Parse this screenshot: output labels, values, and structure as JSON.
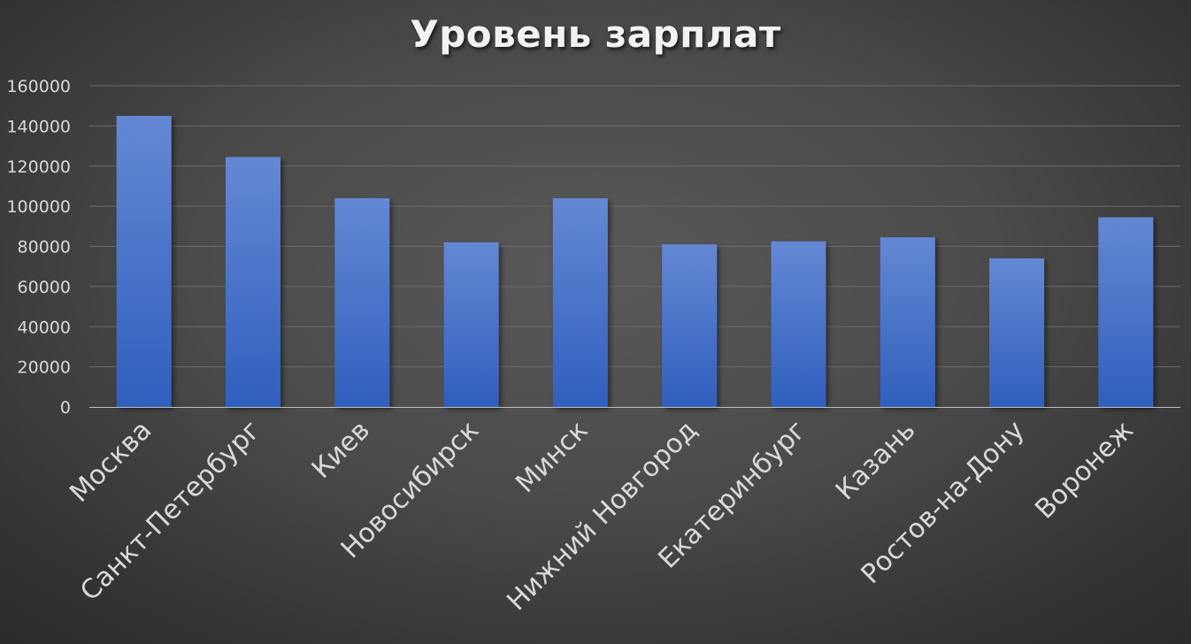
{
  "chart_data": {
    "type": "bar",
    "title": "Уровень зарплат",
    "xlabel": "",
    "ylabel": "",
    "categories": [
      "Москва",
      "Санкт-Петербург",
      "Киев",
      "Новосибирск",
      "Минск",
      "Нижний Новгород",
      "Екатеринбург",
      "Казань",
      "Ростов-на-Дону",
      "Воронеж"
    ],
    "values": [
      145000,
      124500,
      104000,
      82000,
      104000,
      81000,
      82500,
      84500,
      74000,
      94500
    ],
    "ylim": [
      0,
      160000
    ],
    "yticks": [
      "0",
      "20000",
      "40000",
      "60000",
      "80000",
      "100000",
      "120000",
      "140000",
      "160000"
    ],
    "grid": true,
    "legend": "none",
    "bar_color_top": "#6488d4",
    "bar_color_bottom": "#2f5fbd",
    "background_color": "#4a4a4a",
    "text_color": "#d9d9d9",
    "title_color": "#f2f2f2"
  }
}
